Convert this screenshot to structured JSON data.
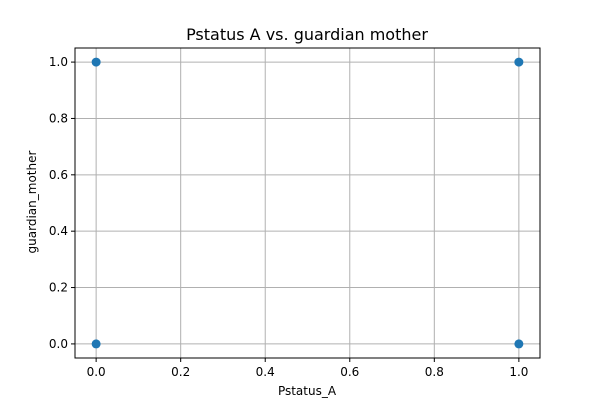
{
  "chart_data": {
    "type": "scatter",
    "title": "Pstatus A vs. guardian mother",
    "xlabel": "Pstatus_A",
    "ylabel": "guardian_mother",
    "xlim": [
      -0.05,
      1.05
    ],
    "ylim": [
      -0.05,
      1.05
    ],
    "xticks": [
      0.0,
      0.2,
      0.4,
      0.6,
      0.8,
      1.0
    ],
    "yticks": [
      0.0,
      0.2,
      0.4,
      0.6,
      0.8,
      1.0
    ],
    "xtick_labels": [
      "0.0",
      "0.2",
      "0.4",
      "0.6",
      "0.8",
      "1.0"
    ],
    "ytick_labels": [
      "0.0",
      "0.2",
      "0.4",
      "0.6",
      "0.8",
      "1.0"
    ],
    "grid": true,
    "series": [
      {
        "color": "#1f77b4",
        "points": [
          {
            "x": 0,
            "y": 0
          },
          {
            "x": 0,
            "y": 1
          },
          {
            "x": 1,
            "y": 0
          },
          {
            "x": 1,
            "y": 1
          }
        ]
      }
    ]
  }
}
